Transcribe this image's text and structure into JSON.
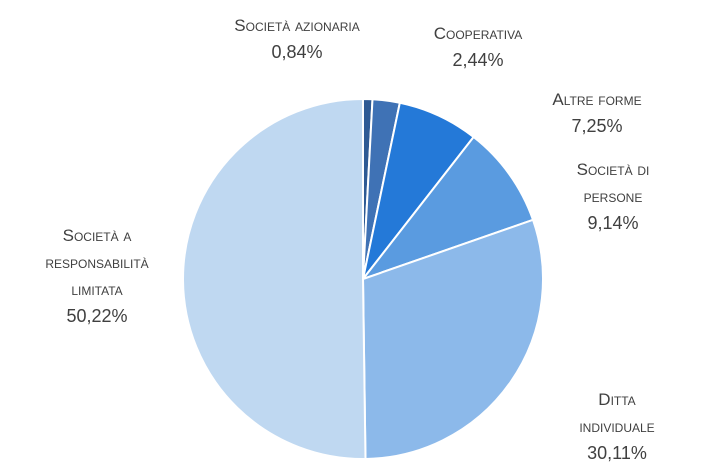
{
  "chart_data": {
    "type": "pie",
    "categories": [
      "Società azionaria",
      "Cooperativa",
      "Altre forme",
      "Società di persone",
      "Ditta individuale",
      "Società a responsabilità limitata"
    ],
    "values": [
      0.84,
      2.44,
      7.25,
      9.14,
      30.11,
      50.22
    ],
    "value_labels": [
      "0,84%",
      "2,44%",
      "7,25%",
      "9,14%",
      "30,11%",
      "50,22%"
    ],
    "colors": [
      "#2e5a94",
      "#3f72b5",
      "#2479d8",
      "#5a9be0",
      "#8cb9ea",
      "#bfd8f1"
    ]
  }
}
